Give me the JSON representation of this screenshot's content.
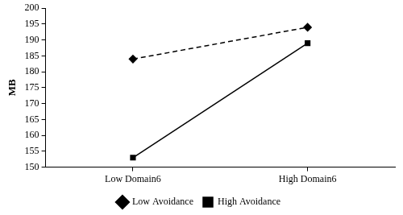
{
  "chart_data": {
    "type": "line",
    "y_label": "MB",
    "categories": [
      "Low Domain6",
      "High Domain6"
    ],
    "series": [
      {
        "name": "Low Avoidance",
        "color": "#000000",
        "values": [
          184,
          194
        ],
        "marker": "diamond",
        "line_style": "dashed"
      },
      {
        "name": "High Avoidance",
        "color": "#000000",
        "values": [
          153,
          189
        ],
        "marker": "square",
        "line_style": "solid"
      }
    ],
    "ylim": [
      150,
      200
    ],
    "yticks": [
      150,
      155,
      160,
      165,
      170,
      175,
      180,
      185,
      190,
      195,
      200
    ],
    "grid": false,
    "legend": "bottom"
  }
}
